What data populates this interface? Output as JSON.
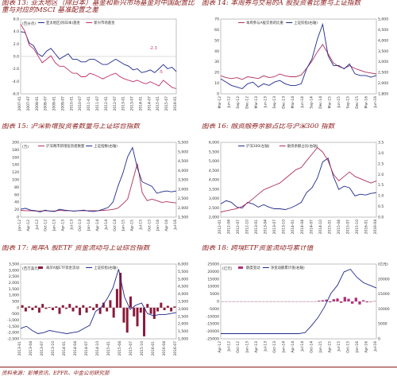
{
  "panels": [
    {
      "title": "图表 13: 亚太地区（除日本）基金和新兴市场基金对中国配置比重与对应的MSCI 基准配置之差",
      "chart_data": {
        "type": "line",
        "ylabel": "(百分点)",
        "yticks": [
          "6.0",
          "4.0",
          "2.0",
          "0.0",
          "-2.0",
          "-4.0",
          "-6.0"
        ],
        "ylim": [
          -6,
          6
        ],
        "xticks": [
          "2007-01",
          "2007-07",
          "2008-01",
          "2008-07",
          "2009-01",
          "2009-07",
          "2010-01",
          "2010-07",
          "2011-01",
          "2011-07",
          "2012-01",
          "2012-07",
          "2013-01",
          "2013-07",
          "2014-01",
          "2014-07",
          "2015-01",
          "2015-07",
          "2016-01"
        ],
        "annotations": [
          "-2.3",
          "-5"
        ],
        "series": [
          {
            "name": "亚太地区(除日本)基金",
            "color": "#1f2a8a",
            "values": [
              4.6,
              4.5,
              2.5,
              2.0,
              0.5,
              0.0,
              1.0,
              1.5,
              0.5,
              -0.5,
              0.0,
              0.5,
              -0.5,
              -0.5,
              -1.0,
              -1.0,
              -0.5,
              -0.5,
              -1.0,
              -1.5,
              -1.5,
              -1.0,
              -0.5,
              -1.0,
              -1.5,
              -1.8,
              -2.5,
              -2.3,
              -3.0,
              -2.8,
              -2.5,
              -3.0,
              -2.3,
              -1.5,
              -2.3,
              -2.0,
              -2.8
            ]
          },
          {
            "name": "新兴市场基金",
            "color": "#c0306a",
            "values": [
              4.0,
              3.0,
              1.0,
              0.5,
              -0.5,
              -1.5,
              -1.0,
              -0.5,
              -1.5,
              -2.0,
              -2.0,
              -2.5,
              -3.0,
              -3.0,
              -3.5,
              -3.5,
              -3.0,
              -3.2,
              -3.5,
              -3.8,
              -3.5,
              -3.2,
              -3.0,
              -3.5,
              -3.8,
              -4.0,
              -4.2,
              -4.0,
              -4.3,
              -4.5,
              -4.2,
              -4.5,
              -4.8,
              -4.0,
              -4.5,
              -5.0,
              -5.2
            ]
          }
        ]
      }
    },
    {
      "title": "图表 14: 本周券与交易的A 股投资者比重与上证指数",
      "chart_data": {
        "type": "line",
        "ylabel": "",
        "yticks": [
          "70",
          "60",
          "50",
          "40",
          "30",
          "20",
          "10",
          "0"
        ],
        "ylim": [
          0,
          70
        ],
        "y2ticks": [
          "5,000",
          "4,500",
          "4,000",
          "3,500",
          "3,000",
          "2,500",
          "2,000",
          "1,800"
        ],
        "xticks": [
          "Mar-12",
          "Jun-12",
          "Sep-12",
          "Dec-12",
          "Mar-13",
          "Jun-13",
          "Sep-13",
          "Dec-13",
          "Mar-14",
          "Jun-14",
          "Sep-14",
          "Dec-14",
          "Mar-15",
          "Jun-15",
          "Sep-15",
          "Dec-15",
          "Mar-16",
          "Jun-16"
        ],
        "series": [
          {
            "name": "本周参与A股交易的比重",
            "color": "#b0305a",
            "values": [
              14,
              12,
              11,
              12,
              10,
              13,
              12,
              11,
              14,
              12,
              13,
              16,
              14,
              13,
              13,
              15,
              22,
              30,
              40,
              48,
              38,
              28,
              24,
              22,
              25,
              22,
              20,
              18,
              17,
              16
            ]
          },
          {
            "name": "上证综指(右轴)",
            "color": "#1f2a8a",
            "values": [
              22,
              20,
              18,
              17,
              16,
              19,
              20,
              17,
              19,
              18,
              20,
              21,
              19,
              18,
              18,
              19,
              28,
              34,
              46,
              55,
              36,
              30,
              30,
              28,
              31,
              25,
              24,
              24,
              23,
              24
            ]
          }
        ]
      }
    },
    {
      "title": "图表 15: 沪深新增投资者数量与上证综合指数",
      "chart_data": {
        "type": "line",
        "ylabel": "(万)",
        "yticks": [
          "200",
          "180",
          "160",
          "140",
          "120",
          "100",
          "80",
          "60",
          "40",
          "20",
          "0"
        ],
        "ylim": [
          0,
          200
        ],
        "y2ticks": [
          "5,500",
          "5,000",
          "4,500",
          "4,000",
          "3,500",
          "3,000",
          "2,500",
          "2,000",
          "1,500"
        ],
        "xticks": [
          "Jan-12",
          "Apr-12",
          "Jul-12",
          "Oct-12",
          "Jan-13",
          "Apr-13",
          "Jul-13",
          "Oct-13",
          "Jan-14",
          "Apr-14",
          "Jul-14",
          "Oct-14",
          "Jan-15",
          "Apr-15",
          "Jul-15",
          "Oct-15",
          "Jan-16",
          "Apr-16",
          "Jul-16"
        ],
        "series": [
          {
            "name": "沪深两市新增投资者数量",
            "color": "#b0305a",
            "values": [
              5,
              4,
              4,
              3,
              3,
              4,
              3,
              3,
              5,
              4,
              4,
              3,
              4,
              4,
              4,
              4,
              4,
              5,
              6,
              8,
              12,
              25,
              40,
              95,
              150,
              60,
              35,
              40,
              35,
              30,
              32,
              30,
              28
            ]
          },
          {
            "name": "上证指数(右轴)",
            "color": "#1f2a8a",
            "values": [
              40,
              42,
              38,
              37,
              34,
              38,
              36,
              35,
              40,
              38,
              37,
              36,
              37,
              38,
              36,
              35,
              37,
              40,
              44,
              56,
              90,
              118,
              155,
              175,
              130,
              100,
              95,
              90,
              75,
              78,
              80,
              78,
              80
            ]
          }
        ]
      }
    },
    {
      "title": "图表 16: 融资融券余额占比与沪深300 指数",
      "chart_data": {
        "type": "line",
        "ylabel": "",
        "yticks": [
          "6,000",
          "5,500",
          "5,000",
          "4,500",
          "4,000",
          "3,500",
          "3,000",
          "2,500",
          "2,000"
        ],
        "ylim": [
          2000,
          6000
        ],
        "y2ticks": [
          "3.5",
          "3.0",
          "2.5",
          "2.0",
          "1.5",
          "1.0",
          "0.5",
          "0.0"
        ],
        "xticks": [
          "2012-01",
          "2012-04",
          "2012-07",
          "2012-10",
          "2013-01",
          "2013-04",
          "2013-07",
          "2013-10",
          "2014-01",
          "2014-04",
          "2014-07",
          "2014-10",
          "2015-01",
          "2015-04",
          "2015-07",
          "2015-10",
          "2016-01",
          "2016-04"
        ],
        "series": [
          {
            "name": "沪深300(左轴)",
            "color": "#1f2a8a",
            "values": [
              2500,
              2700,
              2600,
              2300,
              2250,
              2600,
              2500,
              2300,
              2450,
              2300,
              2200,
              2200,
              2150,
              2250,
              2400,
              2600,
              3200,
              3500,
              4100,
              5100,
              5350,
              4200,
              3400,
              3600,
              3500,
              3000,
              3100,
              3050,
              3150,
              3200
            ]
          },
          {
            "name": "融资余额占比(右轴)",
            "color": "#b0305a",
            "values": [
              0.3,
              0.35,
              0.4,
              0.45,
              0.55,
              0.7,
              0.9,
              1.1,
              1.3,
              1.4,
              1.5,
              1.6,
              1.8,
              2.0,
              2.2,
              2.3,
              2.6,
              2.9,
              3.2,
              3.0,
              2.6,
              2.0,
              1.7,
              1.9,
              2.1,
              1.9,
              1.8,
              1.7,
              1.6,
              1.7
            ]
          }
        ]
      }
    },
    {
      "title": "图表 17: 离岸A 股ETF 资金流动与上证综合指数",
      "chart_data": {
        "type": "bar",
        "ylabel": "(百万美元)",
        "yticks": [
          "3,500",
          "3,000",
          "2,500",
          "2,000",
          "1,500",
          "1,000",
          "500",
          "0",
          "-500",
          "-1,000",
          "-1,500",
          "-2,000",
          "-2,500"
        ],
        "ylim": [
          -2500,
          3500
        ],
        "y2ticks": [
          "6,000",
          "5,500",
          "5,000",
          "4,500",
          "4,000",
          "3,500",
          "3,000",
          "2,500",
          "2,000",
          "1,500",
          "1,000"
        ],
        "xticks": [
          "2013-01",
          "2013-04",
          "2013-07",
          "2013-10",
          "2014-01",
          "2014-04",
          "2014-07",
          "2014-10",
          "2015-01",
          "2015-04",
          "2015-07",
          "2015-10",
          "2016-01",
          "2016-04",
          "2016-07"
        ],
        "bars": {
          "name": "离岸A股ETF资金流动",
          "color": "#8b1a3a",
          "values": [
            200,
            -300,
            100,
            -200,
            150,
            -400,
            300,
            -100,
            50,
            -200,
            100,
            -500,
            200,
            -100,
            300,
            -300,
            150,
            -600,
            200,
            -400,
            100,
            -200,
            300,
            -500,
            400,
            -300,
            600,
            -800,
            1500,
            2800,
            -1200,
            -2000,
            900,
            -700,
            -1500,
            -400,
            -2300,
            300,
            -500,
            -900,
            -300,
            400,
            -200,
            150,
            -300,
            100
          ]
        },
        "series": [
          {
            "name": "上证综指(右轴)",
            "color": "#1f2a8a",
            "values": [
              2300,
              2400,
              2200,
              2050,
              2100,
              2200,
              2150,
              2100,
              2050,
              2100,
              2150,
              2300,
              2450,
              3100,
              3300,
              3700,
              4200,
              5100,
              3800,
              3200,
              3400,
              3500,
              3000,
              2900,
              2950,
              2950,
              3000,
              3050
            ]
          }
        ]
      }
    },
    {
      "title": "图表 18: 跨境ETF资金流动与累计值",
      "chart_data": {
        "type": "bar",
        "ylabel": "(亿元)",
        "yticks": [
          "25000",
          "20000",
          "15000",
          "10000",
          "5000",
          "0",
          "-5000",
          "-10000",
          "-15000",
          "-20000",
          "-25000"
        ],
        "ylim": [
          -25000,
          25000
        ],
        "y2ticks": [
          "(亿元)",
          "20000",
          "15000",
          "10000",
          "5000",
          "0"
        ],
        "xticks": [
          "Apr-12",
          "Jul-12",
          "Oct-12",
          "Jan-13",
          "Apr-13",
          "Jul-13",
          "Oct-13",
          "Jan-14",
          "Apr-14",
          "Jul-14",
          "Oct-14",
          "Jan-15",
          "Apr-15",
          "Jul-15",
          "Oct-15",
          "Jan-16",
          "Apr-16",
          "Jul-16"
        ],
        "bars": {
          "name": "额度变动",
          "color": "#b0307a",
          "values": [
            0,
            0,
            0,
            0,
            0,
            0,
            0,
            0,
            0,
            0,
            0,
            0,
            0,
            0,
            0,
            0,
            0,
            0,
            0,
            0,
            0,
            0,
            0,
            0,
            0,
            0,
            500,
            800,
            1200,
            -600,
            1500,
            2000,
            -900,
            3000,
            1800,
            -1500,
            2500,
            -2000,
            800,
            -600,
            -300,
            200
          ]
        },
        "series": [
          {
            "name": "净变动额累计值(右轴)",
            "color": "#1f2a8a",
            "values": [
              2000,
              2000,
              2000,
              2000,
              2000,
              2000,
              2000,
              2000,
              2000,
              2000,
              2000,
              2000,
              2000,
              2200,
              3500,
              5000,
              7000,
              9500,
              11000,
              13500,
              14000,
              12500,
              11500,
              11000,
              10500
            ]
          }
        ]
      }
    }
  ],
  "source": "资料来源：彭博资讯、EPFR、中金公司研究部"
}
